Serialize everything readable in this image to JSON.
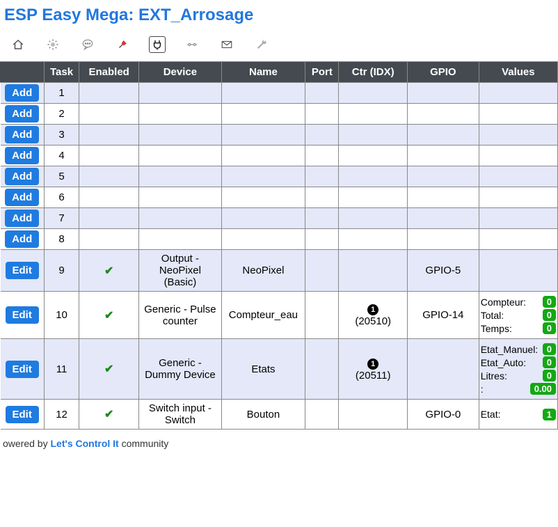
{
  "header": {
    "title_prefix": "ESP Easy Mega: ",
    "title_name": "EXT_Arrosage"
  },
  "toolbar": {
    "active_index": 4,
    "icons": [
      "home",
      "gear",
      "speech",
      "pin",
      "plug",
      "hardware",
      "mail",
      "wrench"
    ]
  },
  "table": {
    "columns": [
      "",
      "Task",
      "Enabled",
      "Device",
      "Name",
      "Port",
      "Ctr (IDX)",
      "GPIO",
      "Values"
    ],
    "button_add": "Add",
    "button_edit": "Edit"
  },
  "rows": [
    {
      "task": 1,
      "btn": "add",
      "enabled": false,
      "device": "",
      "name": "",
      "port": "",
      "ctr": "",
      "gpio": "",
      "values": []
    },
    {
      "task": 2,
      "btn": "add",
      "enabled": false,
      "device": "",
      "name": "",
      "port": "",
      "ctr": "",
      "gpio": "",
      "values": []
    },
    {
      "task": 3,
      "btn": "add",
      "enabled": false,
      "device": "",
      "name": "",
      "port": "",
      "ctr": "",
      "gpio": "",
      "values": []
    },
    {
      "task": 4,
      "btn": "add",
      "enabled": false,
      "device": "",
      "name": "",
      "port": "",
      "ctr": "",
      "gpio": "",
      "values": []
    },
    {
      "task": 5,
      "btn": "add",
      "enabled": false,
      "device": "",
      "name": "",
      "port": "",
      "ctr": "",
      "gpio": "",
      "values": []
    },
    {
      "task": 6,
      "btn": "add",
      "enabled": false,
      "device": "",
      "name": "",
      "port": "",
      "ctr": "",
      "gpio": "",
      "values": []
    },
    {
      "task": 7,
      "btn": "add",
      "enabled": false,
      "device": "",
      "name": "",
      "port": "",
      "ctr": "",
      "gpio": "",
      "values": []
    },
    {
      "task": 8,
      "btn": "add",
      "enabled": false,
      "device": "",
      "name": "",
      "port": "",
      "ctr": "",
      "gpio": "",
      "values": []
    },
    {
      "task": 9,
      "btn": "edit",
      "enabled": true,
      "device": "Output - NeoPixel (Basic)",
      "name": "NeoPixel",
      "port": "",
      "ctr": "",
      "ctr_idx": "",
      "gpio": "GPIO-5",
      "values": []
    },
    {
      "task": 10,
      "btn": "edit",
      "enabled": true,
      "device": "Generic - Pulse counter",
      "name": "Compteur_eau",
      "port": "",
      "ctr": "1",
      "ctr_idx": "(20510)",
      "gpio": "GPIO-14",
      "values": [
        {
          "label": "Compteur:",
          "value": "0"
        },
        {
          "label": "Total:",
          "value": "0"
        },
        {
          "label": "Temps:",
          "value": "0"
        }
      ]
    },
    {
      "task": 11,
      "btn": "edit",
      "enabled": true,
      "device": "Generic - Dummy Device",
      "name": "Etats",
      "port": "",
      "ctr": "1",
      "ctr_idx": "(20511)",
      "gpio": "",
      "values": [
        {
          "label": "Etat_Manuel:",
          "value": "0"
        },
        {
          "label": "Etat_Auto:",
          "value": "0"
        },
        {
          "label": "Litres:",
          "value": "0"
        },
        {
          "label": ":",
          "value": "0.00"
        }
      ]
    },
    {
      "task": 12,
      "btn": "edit",
      "enabled": true,
      "device": "Switch input - Switch",
      "name": "Bouton",
      "port": "",
      "ctr": "",
      "ctr_idx": "",
      "gpio": "GPIO-0",
      "values": [
        {
          "label": "Etat:",
          "value": "1"
        }
      ]
    }
  ],
  "footer": {
    "prefix": "owered by ",
    "link": "Let's Control It",
    "suffix": " community"
  },
  "colors": {
    "header_text": "#2277dd",
    "th_bg": "#444a50",
    "even_row": "#e4e8f8",
    "odd_row": "#ffffff",
    "btn_bg": "#1f7be0",
    "badge_bg": "#13a813",
    "check": "#1a8a1a"
  }
}
